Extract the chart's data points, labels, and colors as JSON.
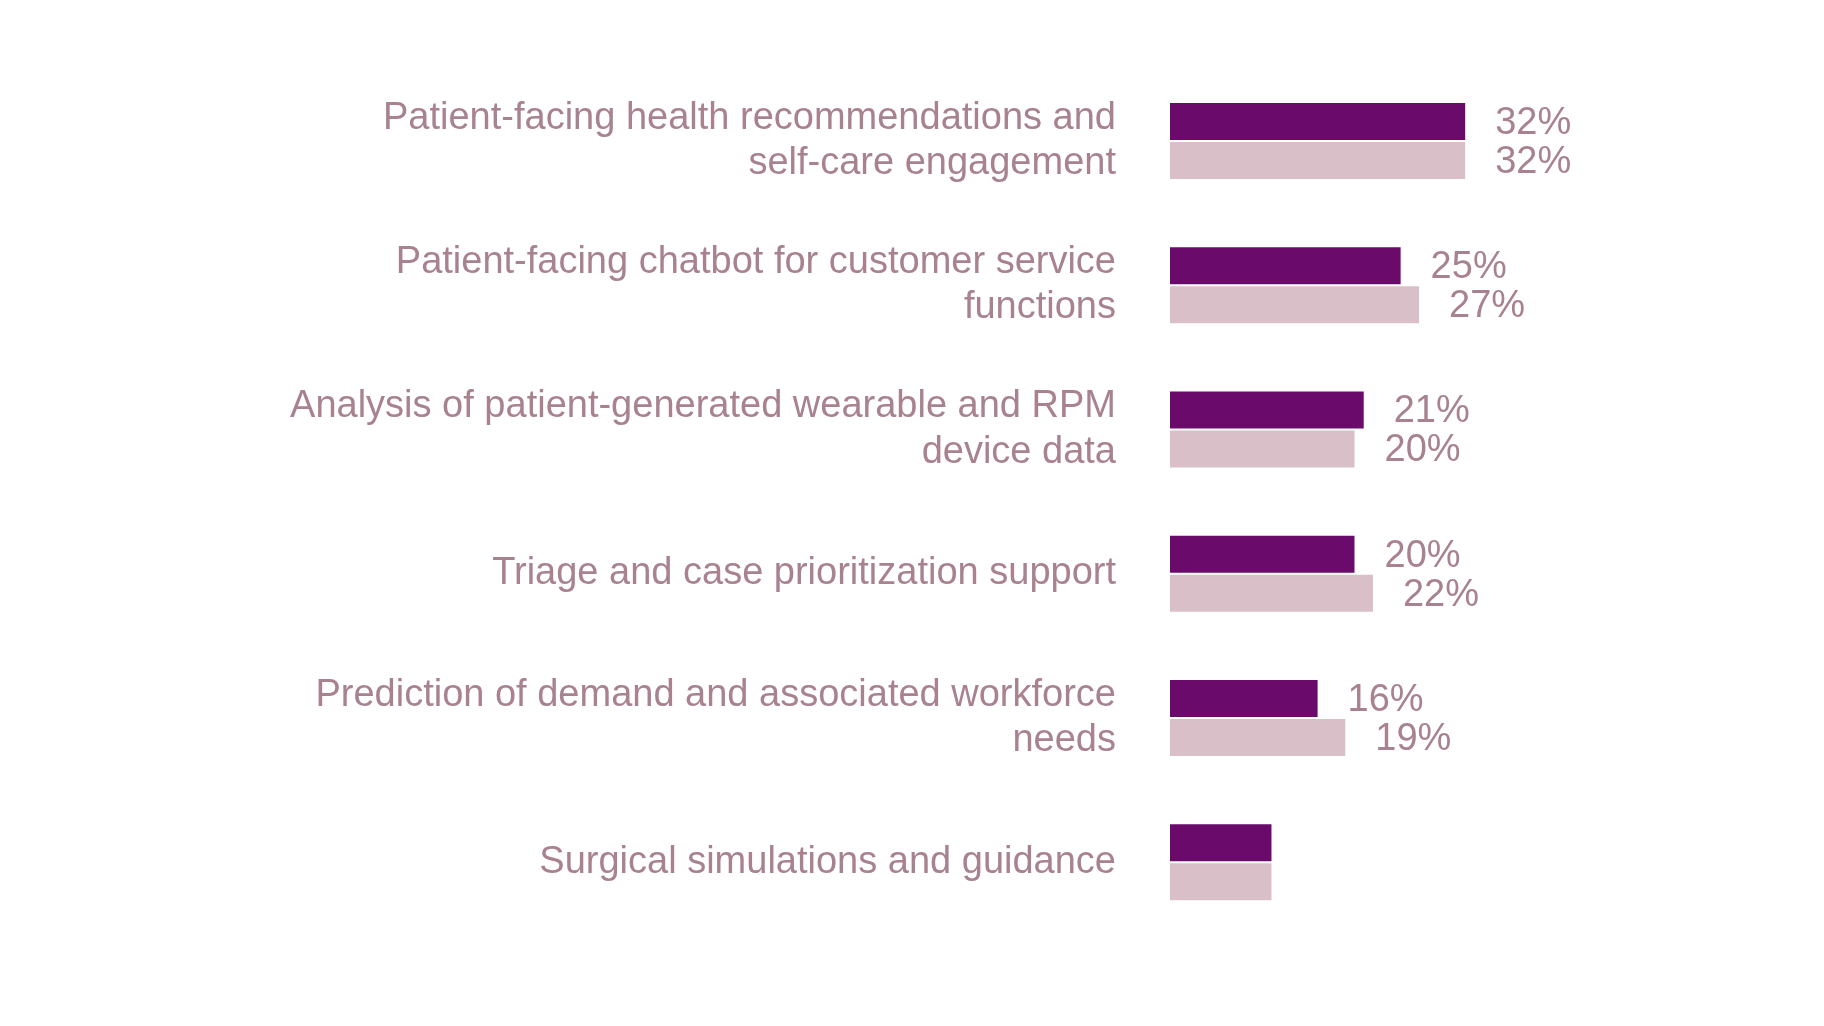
{
  "chart_data": {
    "type": "bar",
    "orientation": "horizontal",
    "categories": [
      "Patient-facing health recommendations and self-care engagement",
      "Patient-facing chatbot for customer service functions",
      "Analysis of patient-generated wearable and RPM device data",
      "Triage and case prioritization support",
      "Prediction of demand and associated workforce needs",
      "Surgical simulations and guidance"
    ],
    "series": [
      {
        "color": "#6a0a6a",
        "values": [
          32,
          25,
          21,
          20,
          16,
          11
        ],
        "value_labels": [
          "32%",
          "25%",
          "21%",
          "20%",
          "16%",
          null
        ]
      },
      {
        "color": "#d9bfc8",
        "values": [
          32,
          27,
          20,
          22,
          19,
          11
        ],
        "value_labels": [
          "32%",
          "27%",
          "20%",
          "22%",
          "19%",
          null
        ]
      }
    ],
    "tick_labels": "y",
    "grid": false,
    "legend": false
  }
}
